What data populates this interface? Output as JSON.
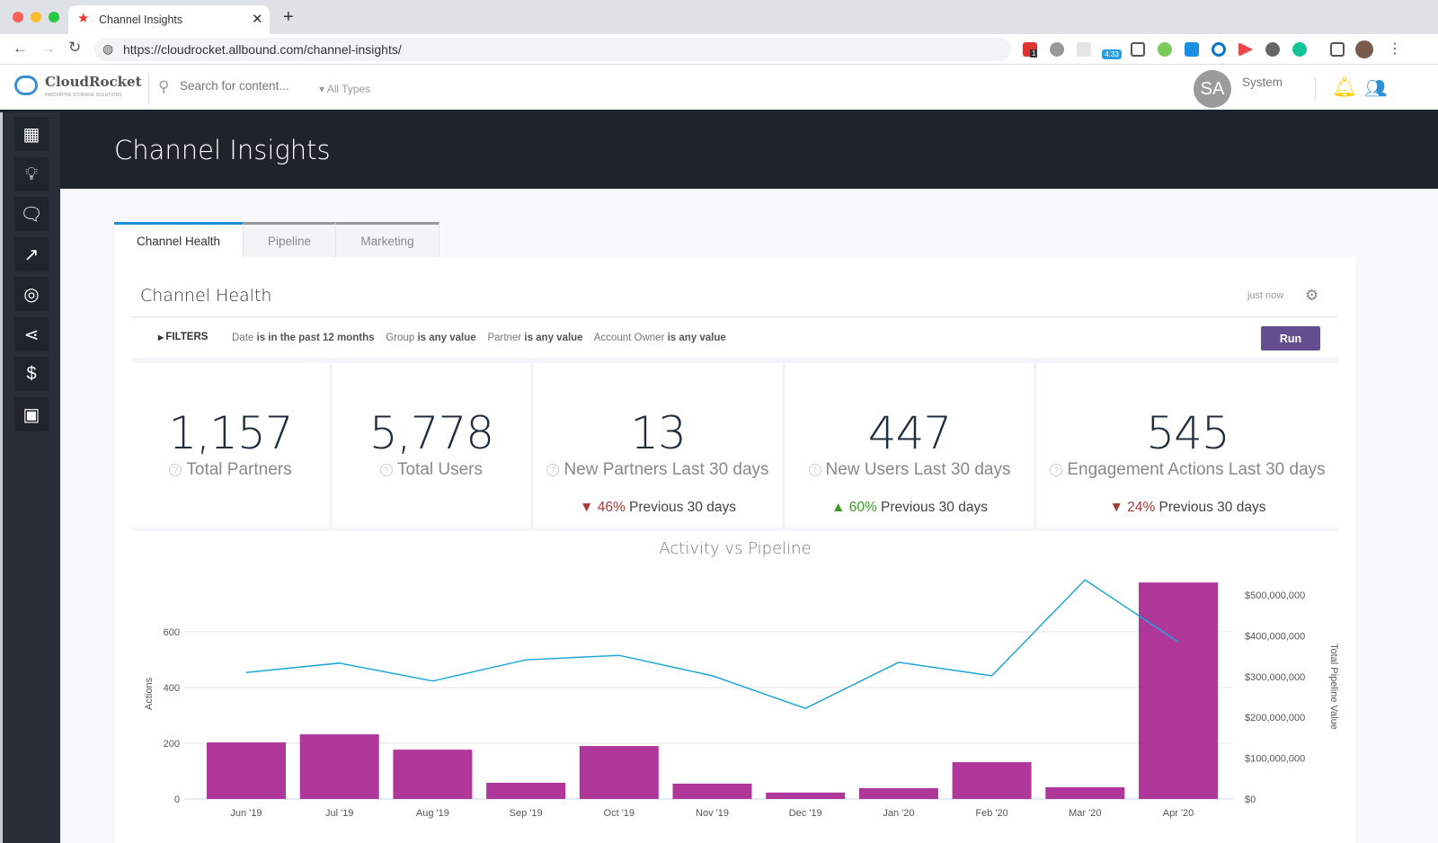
{
  "browser": {
    "tab_title": "Channel Insights",
    "url": "https://cloudrocket.allbound.com/channel-insights/",
    "ext_badge": "4.33",
    "ext_count": "1"
  },
  "header": {
    "logo": "CloudRocket",
    "logo_tagline": "INNOVATIVE STORAGE SOLUTIONS",
    "search_placeholder": "Search for content...",
    "type_filter": "All Types",
    "avatar_initials": "SA",
    "user_name": "System"
  },
  "sidebar": {
    "items": [
      "dashboard-icon",
      "lightbulb-icon",
      "chat-icon",
      "strategy-icon",
      "target-icon",
      "share-icon",
      "dollar-icon",
      "wallet-icon"
    ]
  },
  "page": {
    "title": "Channel Insights",
    "tabs": [
      "Channel Health",
      "Pipeline",
      "Marketing"
    ],
    "active_tab": "Channel Health"
  },
  "report": {
    "title": "Channel Health",
    "updated": "just now",
    "filters_label": "FILTERS",
    "filters": [
      {
        "field": "Date",
        "value": "is in the past 12 months"
      },
      {
        "field": "Group",
        "value": "is any value"
      },
      {
        "field": "Partner",
        "value": "is any value"
      },
      {
        "field": "Account Owner",
        "value": "is any value"
      }
    ],
    "run_label": "Run"
  },
  "kpis": [
    {
      "value": "1,157",
      "label": "Total Partners"
    },
    {
      "value": "5,778",
      "label": "Total Users"
    },
    {
      "value": "13",
      "label": "New Partners Last 30 days",
      "change": "46%",
      "direction": "down",
      "compare": "Previous 30 days"
    },
    {
      "value": "447",
      "label": "New Users Last 30 days",
      "change": "60%",
      "direction": "up",
      "compare": "Previous 30 days"
    },
    {
      "value": "545",
      "label": "Engagement Actions Last 30 days",
      "change": "24%",
      "direction": "down",
      "compare": "Previous 30 days"
    }
  ],
  "colors": {
    "bar": "#b0379a",
    "line": "#1ea7d6",
    "run": "#634f8f",
    "accent": "#1d8fd8"
  },
  "chart_data": {
    "type": "bar+line",
    "title": "Activity vs Pipeline",
    "categories": [
      "Jun '19",
      "Jul '19",
      "Aug '19",
      "Sep '19",
      "Oct '19",
      "Nov '19",
      "Dec '19",
      "Jan '20",
      "Feb '20",
      "Mar '20",
      "Apr '20"
    ],
    "series": [
      {
        "name": "Actions",
        "type": "bar",
        "axis": "left",
        "values": [
          203,
          232,
          177,
          58,
          190,
          55,
          23,
          39,
          132,
          42,
          777
        ]
      },
      {
        "name": "Total Pipeline Value",
        "type": "line",
        "axis": "right",
        "values": [
          310000000,
          333000000,
          289000000,
          341000000,
          352000000,
          302000000,
          222000000,
          335000000,
          302000000,
          537000000,
          385000000
        ]
      }
    ],
    "ylabel": "Actions",
    "ylabel_right": "Total Pipeline Value",
    "yticks": [
      "0",
      "200",
      "400",
      "600"
    ],
    "ylim": [
      0,
      800
    ],
    "yticks_right": [
      "$0",
      "$100,000,000",
      "$200,000,000",
      "$300,000,000",
      "$400,000,000",
      "$500,000,000"
    ],
    "ylim_right": [
      0,
      540000000
    ],
    "grid": true
  }
}
